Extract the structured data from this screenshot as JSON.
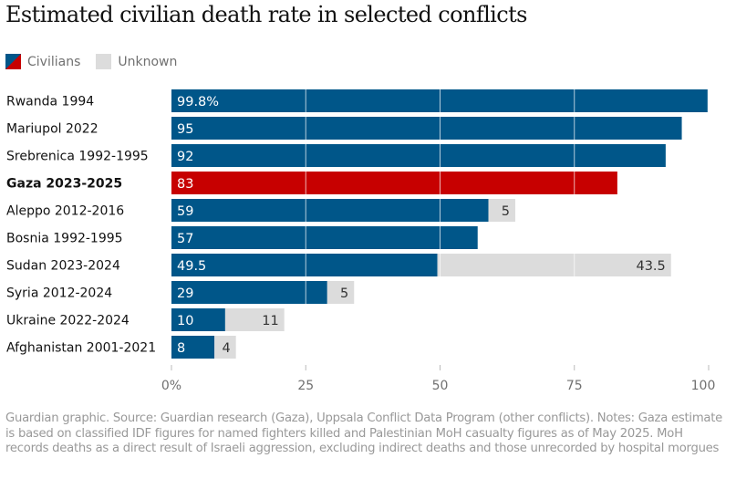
{
  "title": "Estimated civilian death rate in selected conflicts",
  "legend": [
    {
      "label": "Civilians",
      "color": "#005689",
      "highlight_color": "#c70000"
    },
    {
      "label": "Unknown",
      "color": "#dcdcdc"
    }
  ],
  "footer": "Guardian graphic. Source: Guardian research (Gaza), Uppsala Conflict Data Program (other conflicts). Notes: Gaza estimate is based on classified IDF figures for named fighters killed and Palestinian MoH casualty figures as of May 2025. MoH records deaths as a direct result of Israeli aggression, excluding indirect deaths and those unrecorded by hospital morgues",
  "chart_data": {
    "type": "bar",
    "orientation": "horizontal",
    "stacked": true,
    "title": "Estimated civilian death rate in selected conflicts",
    "xlabel": "",
    "ylabel": "",
    "xlim": [
      0,
      100
    ],
    "xticks": [
      0,
      25,
      50,
      75,
      100
    ],
    "xtick_labels": [
      "0%",
      "25",
      "50",
      "75",
      "100"
    ],
    "grid": true,
    "legend_position": "top-left",
    "categories": [
      "Rwanda 1994",
      "Mariupol 2022",
      "Srebrenica 1992-1995",
      "Gaza 2023-2025",
      "Aleppo 2012-2016",
      "Bosnia 1992-1995",
      "Sudan 2023-2024",
      "Syria 2012-2024",
      "Ukraine 2022-2024",
      "Afghanistan 2001-2021"
    ],
    "highlighted_category": "Gaza 2023-2025",
    "series": [
      {
        "name": "Civilians",
        "color": "#005689",
        "highlight_color": "#c70000",
        "values": [
          99.8,
          95,
          92,
          83,
          59,
          57,
          49.5,
          29,
          10,
          8
        ],
        "labels": [
          "99.8%",
          "95",
          "92",
          "83",
          "59",
          "57",
          "49.5",
          "29",
          "10",
          "8"
        ]
      },
      {
        "name": "Unknown",
        "color": "#dcdcdc",
        "values": [
          null,
          null,
          null,
          null,
          5,
          null,
          43.5,
          5,
          11,
          4
        ],
        "labels": [
          "",
          "",
          "",
          "",
          "5",
          "",
          "43.5",
          "5",
          "11",
          "4"
        ]
      }
    ]
  }
}
